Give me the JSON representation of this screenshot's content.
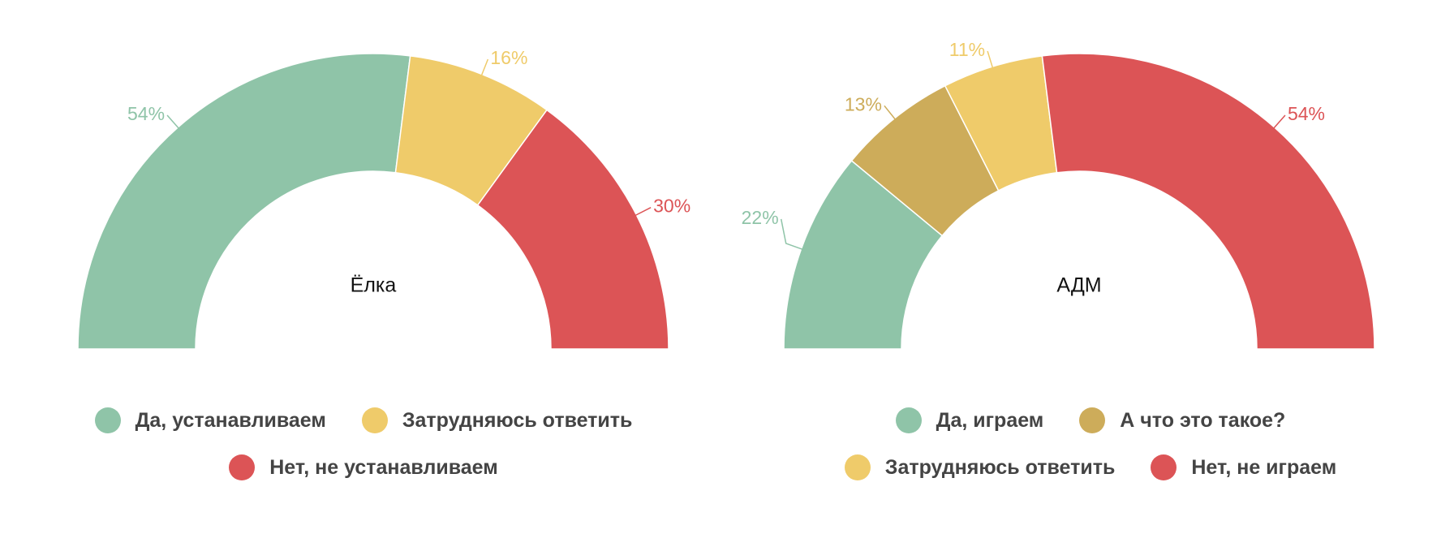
{
  "chart_data": [
    {
      "type": "pie",
      "title": "Ёлка",
      "series": [
        {
          "name": "Да, устанавливаем",
          "value": 54,
          "label": "54%",
          "color": "#8fc4a8"
        },
        {
          "name": "Затрудняюсь ответить",
          "value": 16,
          "label": "16%",
          "color": "#efcb6a"
        },
        {
          "name": "Нет, не устанавливаем",
          "value": 30,
          "label": "30%",
          "color": "#dc5456"
        }
      ],
      "legend_rows": [
        [
          0,
          1
        ],
        [
          2
        ]
      ]
    },
    {
      "type": "pie",
      "title": "АДМ",
      "series": [
        {
          "name": "Да, играем",
          "value": 22,
          "label": "22%",
          "color": "#8fc4a8"
        },
        {
          "name": "А что это такое?",
          "value": 13,
          "label": "13%",
          "color": "#cdac5a"
        },
        {
          "name": "Затрудняюсь ответить",
          "value": 11,
          "label": "11%",
          "color": "#efcb6a"
        },
        {
          "name": "Нет, не играем",
          "value": 54,
          "label": "54%",
          "color": "#dc5456"
        }
      ],
      "legend_rows": [
        [
          0,
          1
        ],
        [
          2,
          3
        ]
      ]
    }
  ]
}
